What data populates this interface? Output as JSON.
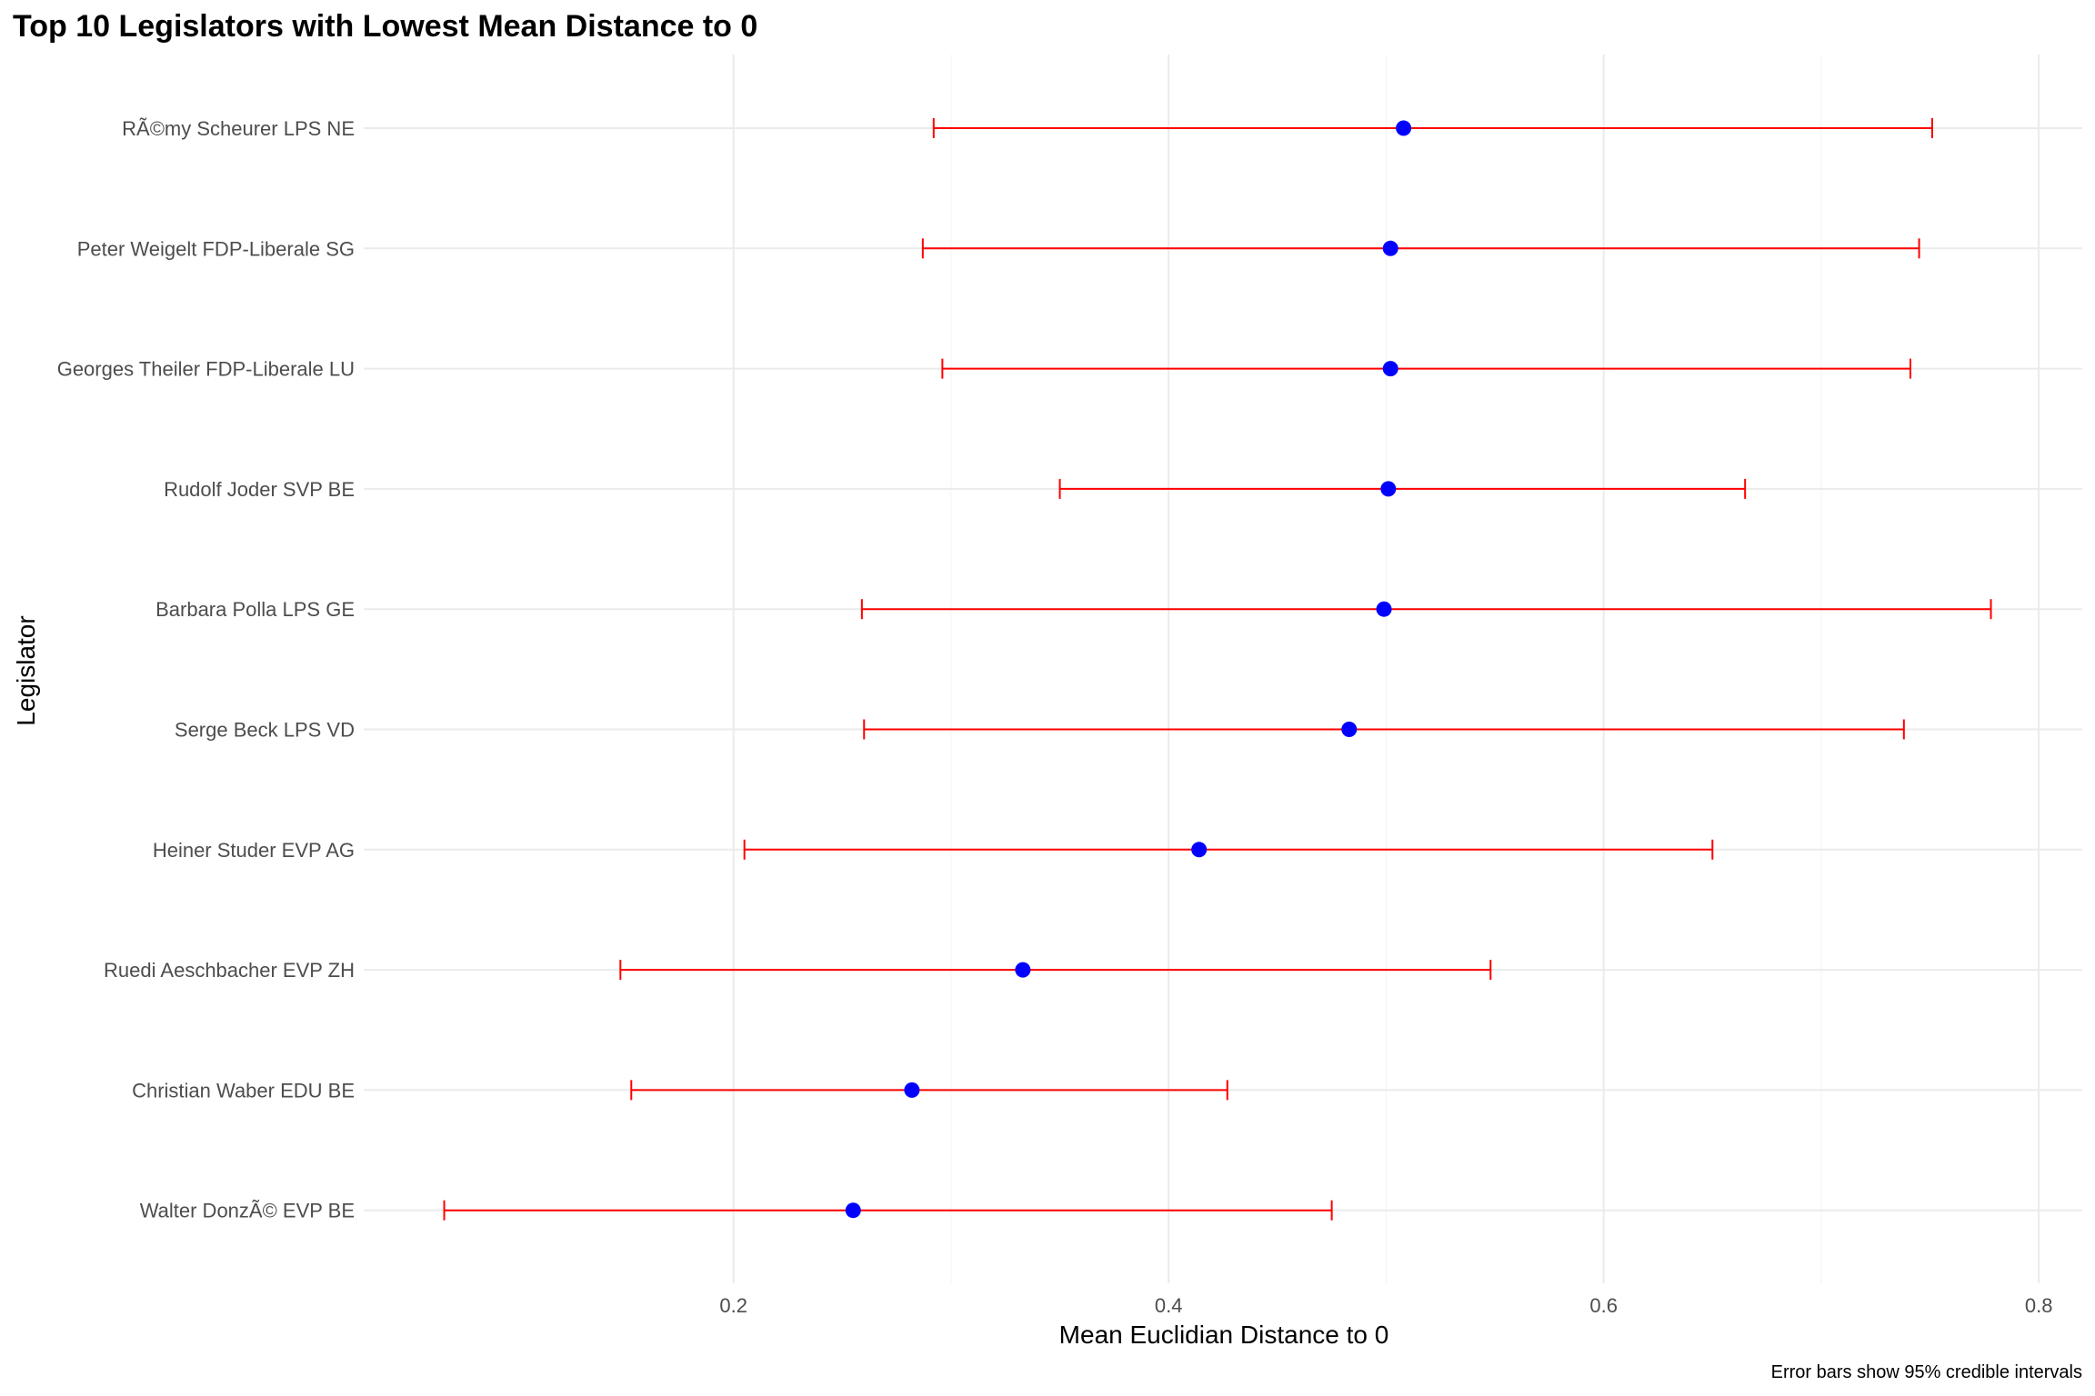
{
  "chart_data": {
    "type": "scatter",
    "title": "Top 10 Legislators with Lowest Mean Distance to 0",
    "xlabel": "Mean Euclidian Distance to 0",
    "ylabel": "Legislator",
    "caption": "Error bars show 95% credible intervals",
    "xlim": [
      0.03,
      0.82
    ],
    "xticks": [
      0.2,
      0.4,
      0.6,
      0.8
    ],
    "xtick_labels": [
      "0.2",
      "0.4",
      "0.6",
      "0.8"
    ],
    "grid": true,
    "point_color": "#0000ff",
    "errorbar_color": "#ff0000",
    "points": [
      {
        "label": "RÃ©my Scheurer LPS NE",
        "mean": 0.508,
        "lower": 0.292,
        "upper": 0.751
      },
      {
        "label": "Peter Weigelt FDP-Liberale SG",
        "mean": 0.502,
        "lower": 0.287,
        "upper": 0.745
      },
      {
        "label": "Georges Theiler FDP-Liberale LU",
        "mean": 0.502,
        "lower": 0.296,
        "upper": 0.741
      },
      {
        "label": "Rudolf Joder SVP BE",
        "mean": 0.501,
        "lower": 0.35,
        "upper": 0.665
      },
      {
        "label": "Barbara Polla LPS GE",
        "mean": 0.499,
        "lower": 0.259,
        "upper": 0.778
      },
      {
        "label": "Serge Beck LPS VD",
        "mean": 0.483,
        "lower": 0.26,
        "upper": 0.738
      },
      {
        "label": "Heiner Studer EVP AG",
        "mean": 0.414,
        "lower": 0.205,
        "upper": 0.65
      },
      {
        "label": "Ruedi Aeschbacher EVP ZH",
        "mean": 0.333,
        "lower": 0.148,
        "upper": 0.548
      },
      {
        "label": "Christian Waber EDU BE",
        "mean": 0.282,
        "lower": 0.153,
        "upper": 0.427
      },
      {
        "label": "Walter DonzÃ© EVP BE",
        "mean": 0.255,
        "lower": 0.067,
        "upper": 0.475
      }
    ]
  }
}
